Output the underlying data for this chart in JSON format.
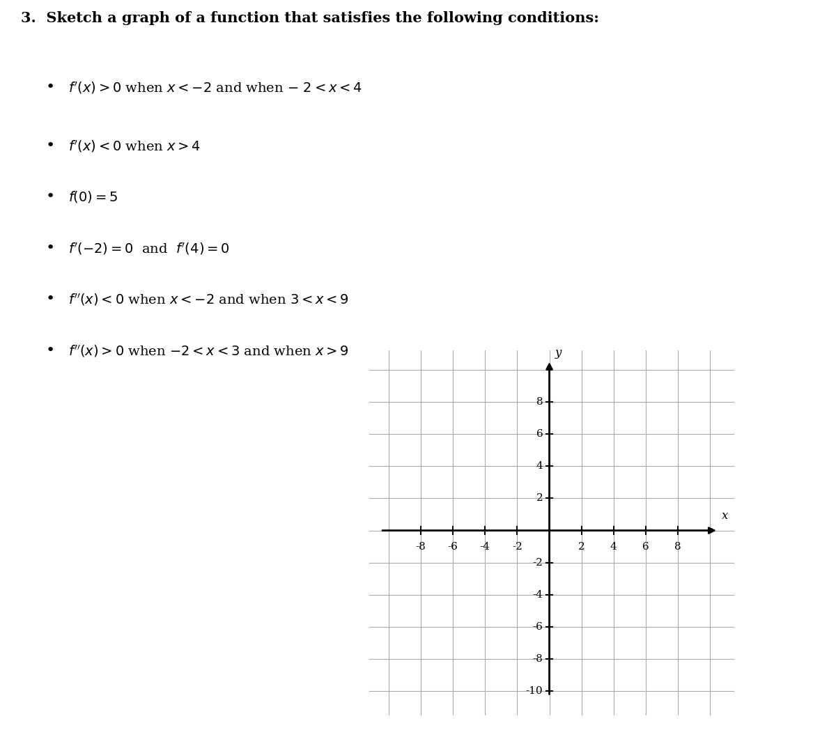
{
  "title_number": "3.",
  "title_text": "Sketch a graph of a function that satisfies the following conditions:",
  "grid_xlim": [
    -10,
    10
  ],
  "grid_ylim": [
    -10,
    10
  ],
  "x_ticks": [
    -8,
    -6,
    -4,
    -2,
    2,
    4,
    6,
    8
  ],
  "y_ticks": [
    -8,
    -6,
    -4,
    -2,
    2,
    4,
    6,
    8
  ],
  "x_label": "x",
  "y_label": "y",
  "background_color": "#ffffff",
  "grid_color": "#aaaaaa",
  "axis_color": "#000000",
  "text_color": "#000000",
  "title_fontsize": 15,
  "bullet_fontsize": 14,
  "tick_fontsize": 11
}
